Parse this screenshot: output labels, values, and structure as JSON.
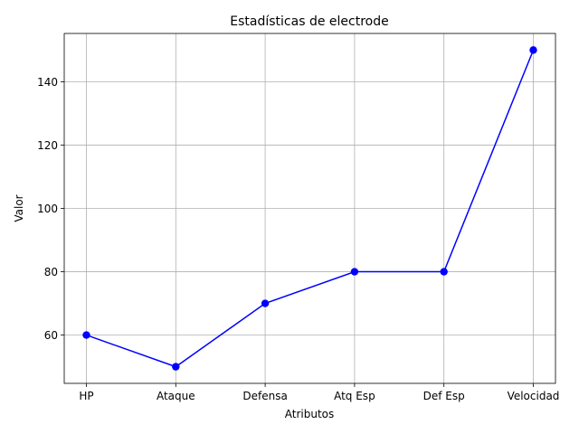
{
  "chart_data": {
    "type": "line",
    "title": "Estadísticas de electrode",
    "xlabel": "Atributos",
    "ylabel": "Valor",
    "categories": [
      "HP",
      "Ataque",
      "Defensa",
      "Atq Esp",
      "Def Esp",
      "Velocidad"
    ],
    "series": [
      {
        "values": [
          60,
          50,
          70,
          80,
          80,
          150
        ],
        "color": "#0000ff",
        "marker": "circle"
      }
    ],
    "ylim": [
      44.75,
      155.25
    ],
    "yticks": [
      60,
      80,
      100,
      120,
      140
    ],
    "grid": true
  }
}
